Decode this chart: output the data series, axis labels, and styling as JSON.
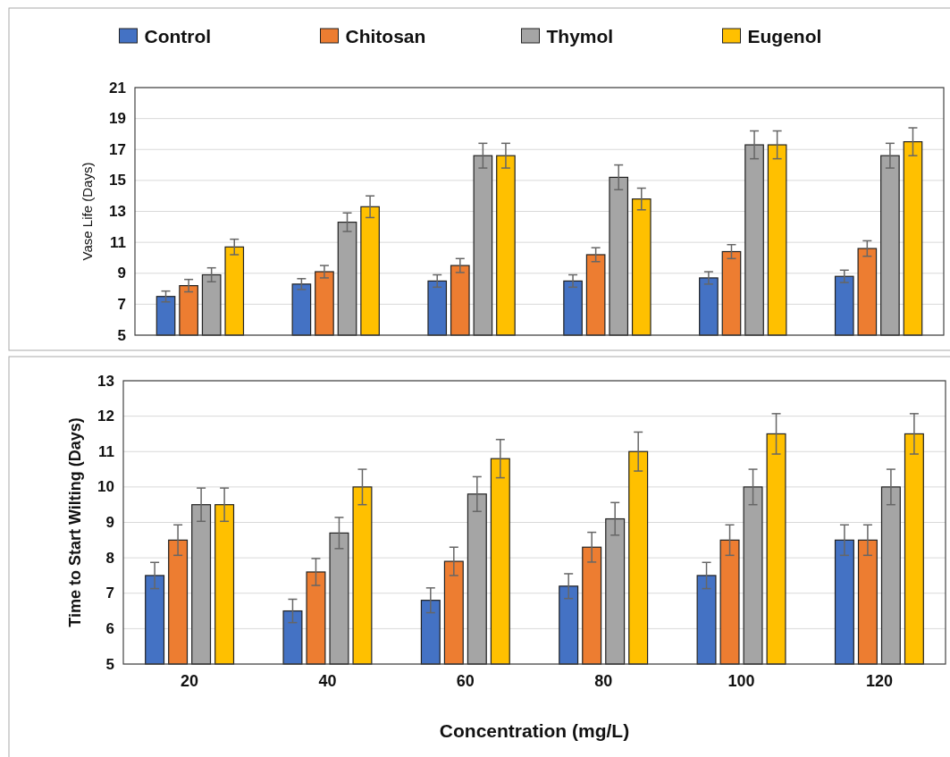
{
  "chart_data": [
    {
      "type": "bar",
      "ylabel": "Vase Life (Days)",
      "categories": [
        null,
        null,
        null,
        null,
        null,
        null
      ],
      "tick_labels": "y",
      "ylim": [
        5,
        21
      ],
      "yticks": [
        5,
        7,
        9,
        11,
        13,
        15,
        17,
        19,
        21
      ],
      "grid": "y",
      "legend": "top",
      "series": [
        {
          "name": "Control",
          "color": "#4472c4",
          "values": [
            7.5,
            8.3,
            8.5,
            8.5,
            8.7,
            8.8
          ],
          "errors": [
            0.35,
            0.35,
            0.4,
            0.4,
            0.4,
            0.4
          ]
        },
        {
          "name": "Chitosan",
          "color": "#ed7d31",
          "values": [
            8.2,
            9.1,
            9.5,
            10.2,
            10.4,
            10.6
          ],
          "errors": [
            0.4,
            0.4,
            0.45,
            0.45,
            0.45,
            0.5
          ]
        },
        {
          "name": "Thymol",
          "color": "#a5a5a5",
          "values": [
            8.9,
            12.3,
            16.6,
            15.2,
            17.3,
            16.6
          ],
          "errors": [
            0.45,
            0.6,
            0.8,
            0.8,
            0.9,
            0.8
          ]
        },
        {
          "name": "Eugenol",
          "color": "#ffc000",
          "values": [
            10.7,
            13.3,
            16.6,
            13.8,
            17.3,
            17.5
          ],
          "errors": [
            0.5,
            0.7,
            0.8,
            0.7,
            0.9,
            0.9
          ]
        }
      ]
    },
    {
      "type": "bar",
      "ylabel": "Time to Start Wilting (Days)",
      "xlabel": "Concentration (mg/L)",
      "categories": [
        "20",
        "40",
        "60",
        "80",
        "100",
        "120"
      ],
      "ylim": [
        5,
        13
      ],
      "yticks": [
        5,
        6,
        7,
        8,
        9,
        10,
        11,
        12,
        13
      ],
      "grid": "y",
      "series": [
        {
          "color": "#4472c4",
          "values": [
            7.5,
            6.5,
            6.8,
            7.2,
            7.5,
            8.5
          ],
          "errors": [
            0.37,
            0.33,
            0.35,
            0.35,
            0.37,
            0.43
          ]
        },
        {
          "color": "#ed7d31",
          "values": [
            8.5,
            7.6,
            7.9,
            8.3,
            8.5,
            8.5
          ],
          "errors": [
            0.43,
            0.38,
            0.4,
            0.42,
            0.43,
            0.43
          ]
        },
        {
          "color": "#a5a5a5",
          "values": [
            9.5,
            8.7,
            9.8,
            9.1,
            10,
            10
          ],
          "errors": [
            0.47,
            0.44,
            0.49,
            0.46,
            0.5,
            0.5
          ]
        },
        {
          "color": "#ffc000",
          "values": [
            9.5,
            10,
            10.8,
            11,
            11.5,
            11.5
          ],
          "errors": [
            0.47,
            0.5,
            0.54,
            0.55,
            0.57,
            0.57
          ]
        }
      ]
    }
  ]
}
